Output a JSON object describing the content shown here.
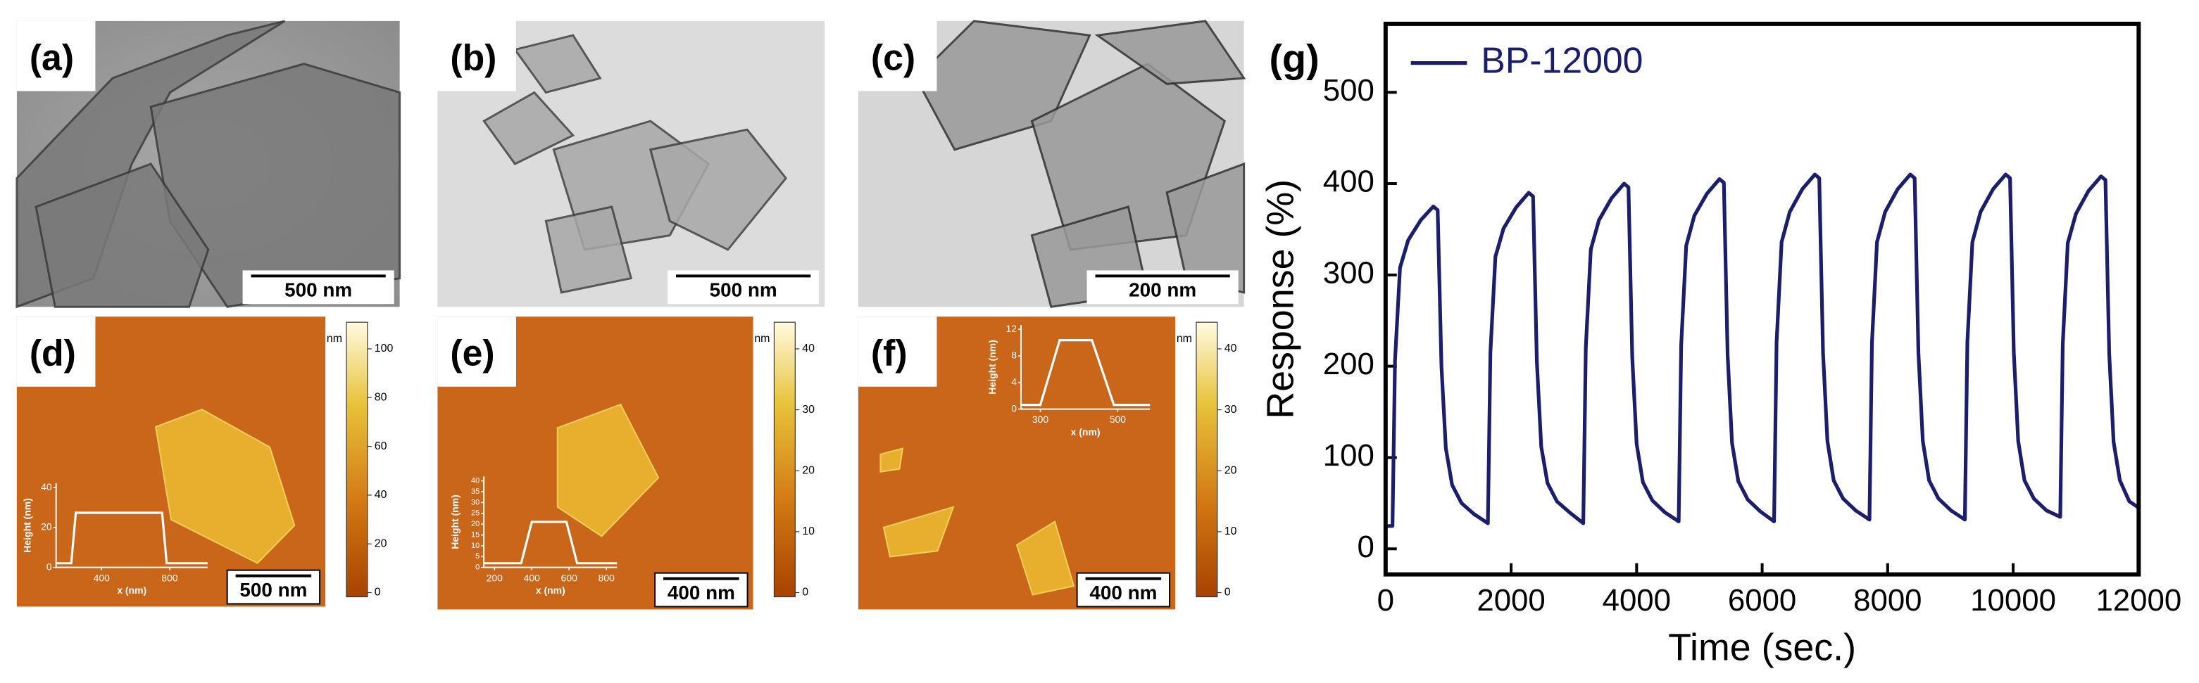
{
  "panels": [
    {
      "label": "(a)",
      "scale_bar": "500 nm"
    },
    {
      "label": "(b)",
      "scale_bar": "500 nm"
    },
    {
      "label": "(c)",
      "scale_bar": "200 nm"
    },
    {
      "label": "(d)",
      "scale_bar": "500 nm",
      "colorbar": {
        "unit": "nm",
        "ticks": [
          0,
          20,
          40,
          60,
          80,
          100
        ]
      },
      "inset": {
        "ylabel": "Height (nm)",
        "xlabel": "x (nm)",
        "yticks": [
          0,
          20,
          40
        ],
        "xticks": [
          400,
          800
        ]
      }
    },
    {
      "label": "(e)",
      "scale_bar": "400 nm",
      "colorbar": {
        "unit": "nm",
        "ticks": [
          0,
          10,
          20,
          30,
          40
        ]
      },
      "inset": {
        "ylabel": "Height (nm)",
        "xlabel": "x (nm)",
        "yticks": [
          0,
          5,
          10,
          15,
          20,
          25,
          30,
          35,
          40
        ],
        "xticks": [
          200,
          400,
          600,
          800
        ]
      }
    },
    {
      "label": "(f)",
      "scale_bar": "400 nm",
      "colorbar": {
        "unit": "nm",
        "ticks": [
          0,
          10,
          20,
          30,
          40
        ]
      },
      "inset": {
        "ylabel": "Height (nm)",
        "xlabel": "x (nm)",
        "yticks": [
          0,
          4,
          8,
          12
        ],
        "xticks": [
          300,
          500
        ]
      }
    }
  ],
  "chart_data": {
    "type": "line",
    "panel_label": "(g)",
    "xlabel": "Time (sec.)",
    "ylabel": "Response (%)",
    "xlim": [
      0,
      12000
    ],
    "ylim": [
      -28,
      575
    ],
    "xticks": [
      0,
      2000,
      4000,
      6000,
      8000,
      10000,
      12000
    ],
    "yticks": [
      0,
      100,
      200,
      300,
      400,
      500
    ],
    "legend": "upper left",
    "x": [
      0,
      110,
      150,
      230,
      360,
      560,
      760,
      830,
      890,
      960,
      1060,
      1210,
      1410,
      1630,
      1670,
      1750,
      1880,
      2080,
      2280,
      2350,
      2410,
      2480,
      2580,
      2730,
      2930,
      3150,
      3190,
      3270,
      3400,
      3600,
      3800,
      3870,
      3930,
      4000,
      4100,
      4250,
      4450,
      4670,
      4710,
      4790,
      4920,
      5120,
      5320,
      5390,
      5450,
      5520,
      5620,
      5770,
      5970,
      6190,
      6230,
      6310,
      6440,
      6640,
      6840,
      6910,
      6970,
      7040,
      7140,
      7290,
      7490,
      7710,
      7750,
      7830,
      7960,
      8160,
      8360,
      8430,
      8490,
      8560,
      8660,
      8810,
      9010,
      9230,
      9270,
      9350,
      9480,
      9680,
      9880,
      9950,
      10010,
      10080,
      10180,
      10330,
      10530,
      10750,
      10790,
      10870,
      11000,
      11200,
      11400,
      11470,
      11530,
      11600,
      11700,
      11850,
      12000
    ],
    "series": [
      {
        "name": "BP-12000",
        "color": "#1b1f6b",
        "values": [
          25,
          25,
          206,
          308,
          338,
          360,
          375,
          371,
          200,
          110,
          70,
          50,
          38,
          28,
          215,
          320,
          351,
          374,
          390,
          386,
          205,
          112,
          72,
          52,
          40,
          28,
          220,
          328,
          360,
          384,
          400,
          396,
          210,
          115,
          73,
          53,
          40,
          30,
          223,
          332,
          365,
          389,
          405,
          401,
          212,
          116,
          74,
          54,
          41,
          30,
          226,
          336,
          369,
          394,
          410,
          406,
          215,
          118,
          75,
          55,
          42,
          32,
          226,
          336,
          369,
          394,
          410,
          406,
          215,
          118,
          75,
          55,
          42,
          32,
          226,
          336,
          369,
          394,
          410,
          406,
          215,
          118,
          75,
          55,
          42,
          35,
          224,
          335,
          367,
          392,
          408,
          404,
          214,
          117,
          75,
          52,
          45
        ]
      }
    ]
  }
}
